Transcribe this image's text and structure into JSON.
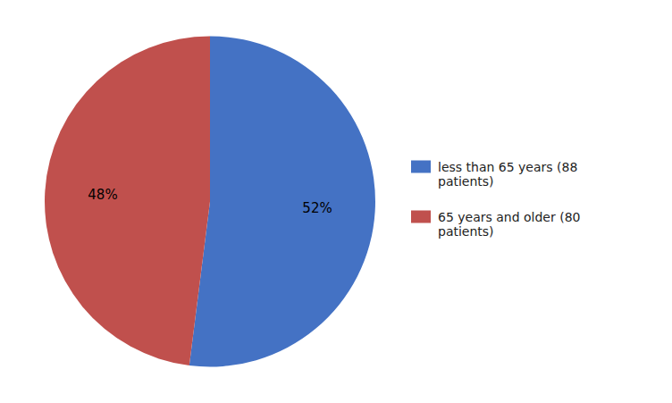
{
  "chart_data": {
    "type": "pie",
    "categories": [
      "less than 65 years (88\npatients)",
      "65 years and older (80\npatients)"
    ],
    "values": [
      52,
      48
    ],
    "value_labels": [
      "52%",
      "48%"
    ],
    "colors": [
      "#4472C4",
      "#C0504D"
    ],
    "data_labels": true,
    "legend": "right"
  }
}
